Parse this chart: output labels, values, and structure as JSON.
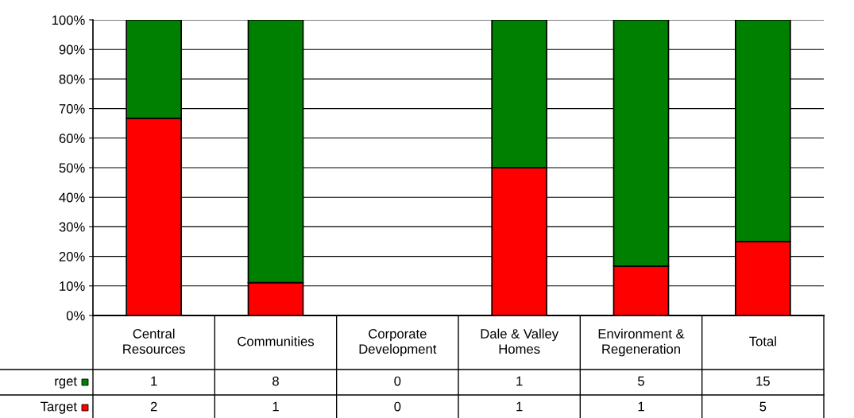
{
  "chart_data": {
    "type": "bar",
    "stacked": true,
    "categories": [
      "Central\nResources",
      "Communities",
      "Corporate\nDevelopment",
      "Dale & Valley\nHomes",
      "Environment &\nRegeneration",
      "Total"
    ],
    "series": [
      {
        "name": "Target",
        "color": "#ff0000",
        "values": [
          66.7,
          11.1,
          0,
          50,
          16.7,
          25
        ]
      },
      {
        "name": "rget",
        "color": "#008000",
        "values": [
          33.3,
          88.9,
          0,
          50,
          83.3,
          75
        ]
      }
    ],
    "annotations": [
      "1",
      "8",
      "0",
      "1",
      "5",
      "15",
      "2",
      "1",
      "0",
      "1",
      "1",
      "5"
    ],
    "ylim": [
      0,
      100
    ],
    "yticks": [
      {
        "value": 0,
        "label": "0%"
      },
      {
        "value": 10,
        "label": "10%"
      },
      {
        "value": 20,
        "label": "20%"
      },
      {
        "value": 30,
        "label": "30%"
      },
      {
        "value": 40,
        "label": "40%"
      },
      {
        "value": 50,
        "label": "50%"
      },
      {
        "value": 60,
        "label": "60%"
      },
      {
        "value": 70,
        "label": "70%"
      },
      {
        "value": 80,
        "label": "80%"
      },
      {
        "value": 90,
        "label": "90%"
      },
      {
        "value": 100,
        "label": "100%"
      }
    ],
    "grid": "y",
    "legend": "left"
  }
}
